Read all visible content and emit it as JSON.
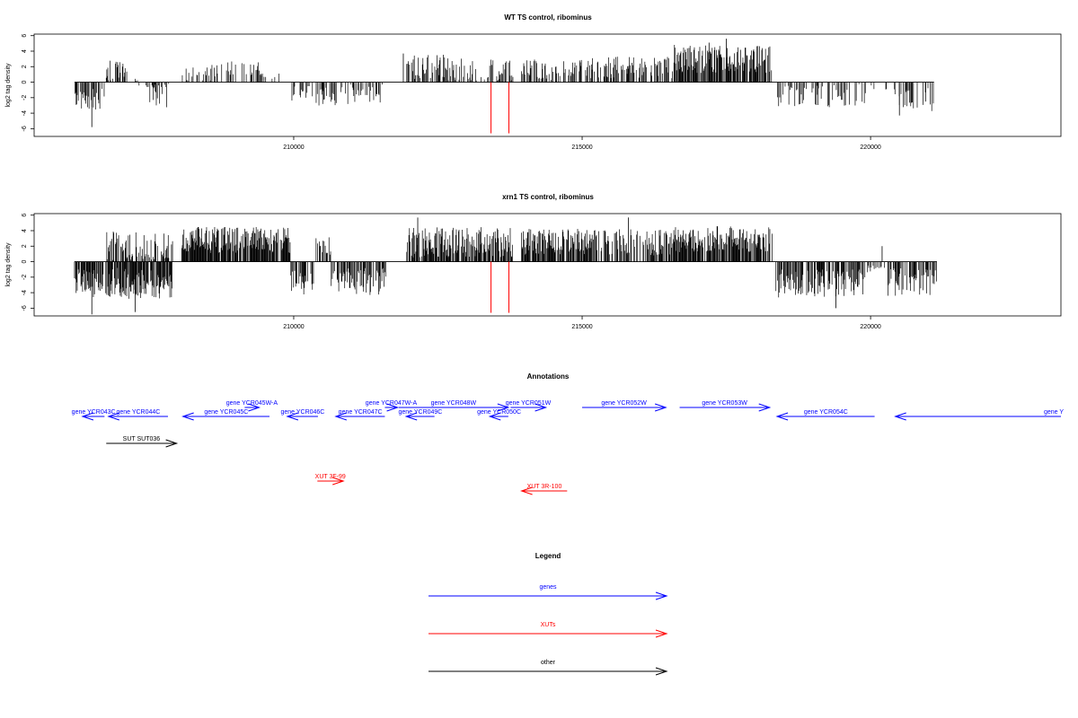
{
  "chart_data": [
    {
      "type": "bar",
      "title": "WT TS control, ribominus",
      "ylabel": "log2 tag density",
      "xlim": [
        205500,
        223300
      ],
      "ylim": [
        -7,
        6.2
      ],
      "xticks": [
        210000,
        215000,
        220000
      ],
      "xtick_labels": [
        "210000",
        "215000",
        "220000"
      ],
      "yticks": [
        6,
        4,
        2,
        0,
        -2,
        -4,
        -6
      ],
      "ytick_labels": [
        "6",
        "4",
        "2",
        "0",
        "-2",
        "-4",
        "-6"
      ],
      "bar_color": "#000000",
      "marker_color": "#ff0000",
      "markers": [
        {
          "x": 213420,
          "y": -6.6
        },
        {
          "x": 213730,
          "y": -6.6
        }
      ],
      "segments": [
        {
          "start": 206200,
          "end": 206750,
          "mean": -2.2,
          "amp": 1.0,
          "density": 0.55
        },
        {
          "start": 206750,
          "end": 207300,
          "mean": 0.6,
          "amp": 1.6,
          "density": 0.4
        },
        {
          "start": 207300,
          "end": 207850,
          "mean": -1.0,
          "amp": 1.6,
          "density": 0.4
        },
        {
          "start": 208050,
          "end": 208850,
          "mean": 1.3,
          "amp": 0.8,
          "density": 0.25
        },
        {
          "start": 208850,
          "end": 209550,
          "mean": 1.6,
          "amp": 0.8,
          "density": 0.3
        },
        {
          "start": 209550,
          "end": 209950,
          "mean": 0.6,
          "amp": 1.0,
          "density": 0.15
        },
        {
          "start": 209950,
          "end": 210400,
          "mean": -1.6,
          "amp": 0.9,
          "density": 0.3
        },
        {
          "start": 210400,
          "end": 210900,
          "mean": -1.9,
          "amp": 1.0,
          "density": 0.4
        },
        {
          "start": 210900,
          "end": 211600,
          "mean": -1.5,
          "amp": 1.0,
          "density": 0.3
        },
        {
          "start": 211950,
          "end": 212800,
          "mean": 1.9,
          "amp": 1.2,
          "density": 0.45
        },
        {
          "start": 212800,
          "end": 213800,
          "mean": 1.4,
          "amp": 1.2,
          "density": 0.35
        },
        {
          "start": 213950,
          "end": 215050,
          "mean": 1.6,
          "amp": 1.0,
          "density": 0.4
        },
        {
          "start": 215050,
          "end": 216600,
          "mean": 1.9,
          "amp": 1.0,
          "density": 0.45
        },
        {
          "start": 216600,
          "end": 218300,
          "mean": 3.0,
          "amp": 1.3,
          "density": 0.75
        },
        {
          "start": 218350,
          "end": 219900,
          "mean": -1.7,
          "amp": 1.2,
          "density": 0.35
        },
        {
          "start": 219900,
          "end": 220500,
          "mean": -0.8,
          "amp": 0.8,
          "density": 0.15
        },
        {
          "start": 220500,
          "end": 221100,
          "mean": -2.2,
          "amp": 1.1,
          "density": 0.4
        }
      ],
      "spikes": [
        {
          "x": 206500,
          "y": -5.8
        },
        {
          "x": 211900,
          "y": 3.7
        },
        {
          "x": 217500,
          "y": 5.6
        },
        {
          "x": 217200,
          "y": 5.1
        },
        {
          "x": 220500,
          "y": -4.3
        }
      ]
    },
    {
      "type": "bar",
      "title": "xrn1 TS control, ribominus",
      "ylabel": "log2 tag density",
      "xlim": [
        205500,
        223300
      ],
      "ylim": [
        -7,
        6.2
      ],
      "xticks": [
        210000,
        215000,
        220000
      ],
      "xtick_labels": [
        "210000",
        "215000",
        "220000"
      ],
      "yticks": [
        6,
        4,
        2,
        0,
        -2,
        -4,
        -6
      ],
      "ytick_labels": [
        "6",
        "4",
        "2",
        "0",
        "-2",
        "-4",
        "-6"
      ],
      "bar_color": "#000000",
      "marker_color": "#ff0000",
      "markers": [
        {
          "x": 213420,
          "y": -6.6
        },
        {
          "x": 213730,
          "y": -6.6
        }
      ],
      "segments": [
        {
          "start": 206200,
          "end": 206750,
          "mean": -2.8,
          "amp": 1.3,
          "density": 0.75
        },
        {
          "start": 206750,
          "end": 207900,
          "mean": -2.8,
          "amp": 1.5,
          "density": 0.75
        },
        {
          "start": 206750,
          "end": 207900,
          "mean": 1.8,
          "amp": 1.5,
          "density": 0.45
        },
        {
          "start": 208050,
          "end": 209950,
          "mean": 2.8,
          "amp": 1.2,
          "density": 0.85
        },
        {
          "start": 209950,
          "end": 210350,
          "mean": -2.7,
          "amp": 1.2,
          "density": 0.6
        },
        {
          "start": 210350,
          "end": 210650,
          "mean": 1.8,
          "amp": 1.0,
          "density": 0.5
        },
        {
          "start": 210650,
          "end": 211600,
          "mean": -2.6,
          "amp": 1.3,
          "density": 0.6
        },
        {
          "start": 211950,
          "end": 213800,
          "mean": 2.5,
          "amp": 1.4,
          "density": 0.75
        },
        {
          "start": 213950,
          "end": 215300,
          "mean": 2.6,
          "amp": 1.2,
          "density": 0.7
        },
        {
          "start": 215300,
          "end": 216600,
          "mean": 2.5,
          "amp": 1.2,
          "density": 0.6
        },
        {
          "start": 216600,
          "end": 218300,
          "mean": 2.9,
          "amp": 1.2,
          "density": 0.8
        },
        {
          "start": 218350,
          "end": 219950,
          "mean": -2.8,
          "amp": 1.3,
          "density": 0.7
        },
        {
          "start": 219950,
          "end": 220300,
          "mean": -0.6,
          "amp": 0.5,
          "density": 0.2
        },
        {
          "start": 220300,
          "end": 221150,
          "mean": -2.6,
          "amp": 1.3,
          "density": 0.6
        }
      ],
      "spikes": [
        {
          "x": 206500,
          "y": -6.8
        },
        {
          "x": 207250,
          "y": -6.5
        },
        {
          "x": 212150,
          "y": 5.7
        },
        {
          "x": 215800,
          "y": 5.7
        },
        {
          "x": 220200,
          "y": 2.0
        },
        {
          "x": 219400,
          "y": -6.0
        }
      ]
    }
  ],
  "annotations": {
    "title": "Annotations",
    "xlim": [
      205500,
      223300
    ],
    "features": [
      {
        "label": "gene YCR043C",
        "start": 206340,
        "end": 206720,
        "strand": "-",
        "row": 0,
        "color": "#0000ff"
      },
      {
        "label": "gene YCR044C",
        "start": 206790,
        "end": 207820,
        "strand": "-",
        "row": 0,
        "color": "#0000ff"
      },
      {
        "label": "gene YCR045W-A",
        "start": 209150,
        "end": 209400,
        "strand": "+",
        "row": 1,
        "color": "#0000ff"
      },
      {
        "label": "gene YCR045C",
        "start": 208080,
        "end": 209580,
        "strand": "-",
        "row": 0,
        "color": "#0000ff"
      },
      {
        "label": "gene YCR046C",
        "start": 209890,
        "end": 210420,
        "strand": "-",
        "row": 0,
        "color": "#0000ff"
      },
      {
        "label": "gene YCR047W-A",
        "start": 211580,
        "end": 211800,
        "strand": "+",
        "row": 1,
        "color": "#0000ff"
      },
      {
        "label": "gene YCR047C",
        "start": 210730,
        "end": 211580,
        "strand": "-",
        "row": 0,
        "color": "#0000ff"
      },
      {
        "label": "gene YCR048W",
        "start": 211820,
        "end": 213720,
        "strand": "+",
        "row": 1,
        "color": "#0000ff"
      },
      {
        "label": "gene YCR049C",
        "start": 211950,
        "end": 212440,
        "strand": "-",
        "row": 0,
        "color": "#0000ff"
      },
      {
        "label": "gene YCR050C",
        "start": 213400,
        "end": 213720,
        "strand": "-",
        "row": 0,
        "color": "#0000ff"
      },
      {
        "label": "gene YCR051W",
        "start": 213760,
        "end": 214370,
        "strand": "+",
        "row": 1,
        "color": "#0000ff"
      },
      {
        "label": "gene YCR052W",
        "start": 215000,
        "end": 216450,
        "strand": "+",
        "row": 1,
        "color": "#0000ff"
      },
      {
        "label": "gene YCR053W",
        "start": 216690,
        "end": 218250,
        "strand": "+",
        "row": 1,
        "color": "#0000ff"
      },
      {
        "label": "gene YCR054C",
        "start": 218380,
        "end": 220070,
        "strand": "-",
        "row": 0,
        "color": "#0000ff"
      },
      {
        "label": "gene Y",
        "start": 220430,
        "end": 223300,
        "strand": "-",
        "row": 0,
        "color": "#0000ff"
      },
      {
        "label": "SUT SUT036",
        "start": 206750,
        "end": 207970,
        "strand": "+",
        "row": 2,
        "color": "#000000"
      },
      {
        "label": "XUT 3F-99",
        "start": 210410,
        "end": 210860,
        "strand": "+",
        "row": 3,
        "color": "#ff0000"
      },
      {
        "label": "XUT 3R-100",
        "start": 213950,
        "end": 214740,
        "strand": "-",
        "row": 4,
        "color": "#ff0000"
      }
    ]
  },
  "legend": {
    "title": "Legend",
    "items": [
      {
        "label": "genes",
        "color": "#0000ff"
      },
      {
        "label": "XUTs",
        "color": "#ff0000"
      },
      {
        "label": "other",
        "color": "#000000"
      }
    ]
  }
}
